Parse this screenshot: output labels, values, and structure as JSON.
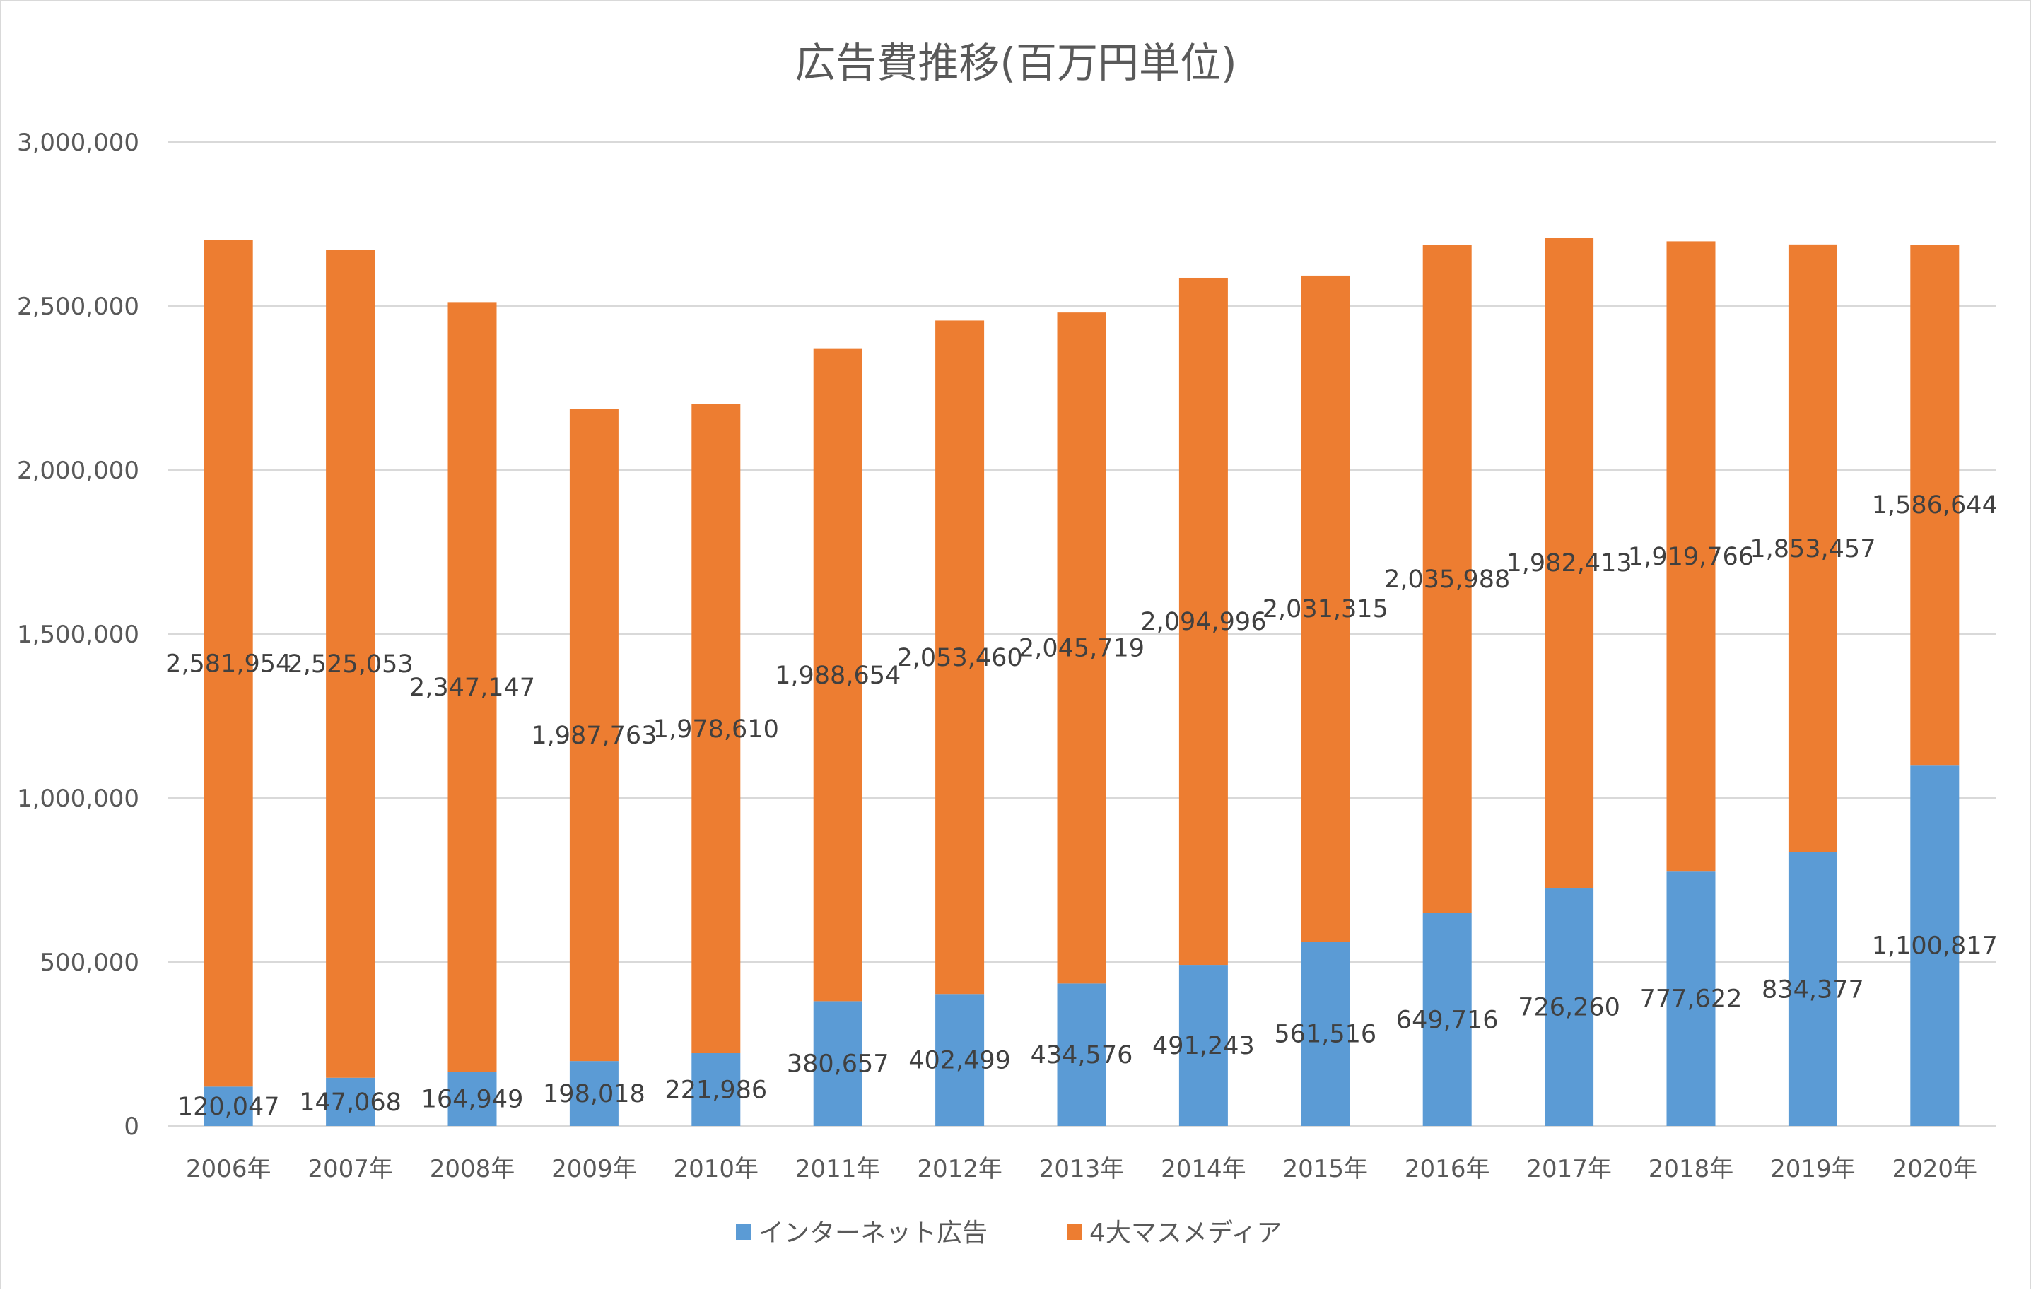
{
  "chart_data": {
    "type": "bar",
    "stacked": true,
    "title": "広告費推移(百万円単位)",
    "xlabel": "",
    "ylabel": "",
    "ylim": [
      0,
      3000000
    ],
    "yticks": [
      0,
      500000,
      1000000,
      1500000,
      2000000,
      2500000,
      3000000
    ],
    "ytick_labels": [
      "0",
      "500,000",
      "1,000,000",
      "1,500,000",
      "2,000,000",
      "2,500,000",
      "3,000,000"
    ],
    "grid": true,
    "legend_position": "bottom",
    "categories": [
      "2006年",
      "2007年",
      "2008年",
      "2009年",
      "2010年",
      "2011年",
      "2012年",
      "2013年",
      "2014年",
      "2015年",
      "2016年",
      "2017年",
      "2018年",
      "2019年",
      "2020年"
    ],
    "series": [
      {
        "name": "インターネット広告",
        "color": "#5b9bd5",
        "values": [
          120047,
          147068,
          164949,
          198018,
          221986,
          380657,
          402499,
          434576,
          491243,
          561516,
          649716,
          726260,
          777622,
          834377,
          1100817
        ],
        "labels": [
          "120,047",
          "147,068",
          "164,949",
          "198,018",
          "221,986",
          "380,657",
          "402,499",
          "434,576",
          "491,243",
          "561,516",
          "649,716",
          "726,260",
          "777,622",
          "834,377",
          "1,100,817"
        ]
      },
      {
        "name": "4大マスメディア",
        "color": "#ed7d31",
        "values": [
          2581954,
          2525053,
          2347147,
          1987763,
          1978610,
          1988654,
          2053460,
          2045719,
          2094996,
          2031315,
          2035988,
          1982413,
          1919766,
          1853457,
          1586644
        ],
        "labels": [
          "2,581,954",
          "2,525,053",
          "2,347,147",
          "1,987,763",
          "1,978,610",
          "1,988,654",
          "2,053,460",
          "2,045,719",
          "2,094,996",
          "2,031,315",
          "2,035,988",
          "1,982,413",
          "1,919,766",
          "1,853,457",
          "1,586,644"
        ]
      }
    ]
  }
}
